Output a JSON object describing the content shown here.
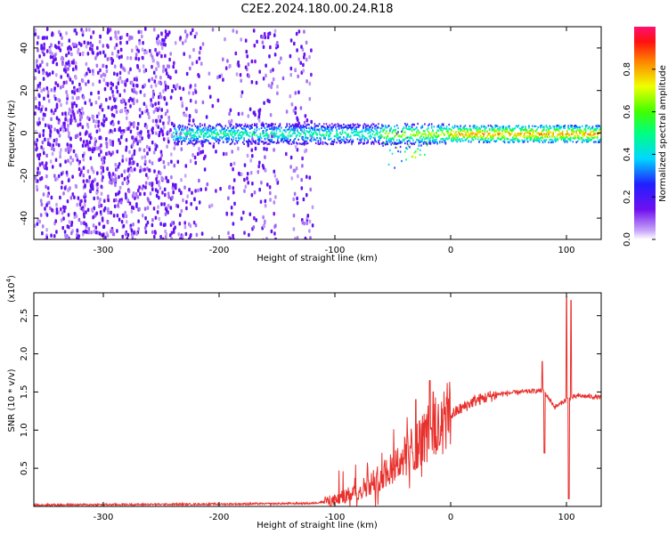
{
  "title": "C2E2.2024.180.00.24.R18",
  "colors": {
    "snr_line": "#e8302c",
    "axis": "#000000",
    "spectrogram_bg": "#ffffff"
  },
  "chart_data": [
    {
      "type": "heatmap",
      "name": "spectrogram",
      "xlabel": "Height of straight line (km)",
      "ylabel": "Frequency (Hz)",
      "xlim": [
        -360,
        130
      ],
      "ylim": [
        -50,
        50
      ],
      "xticks": [
        -300,
        -200,
        -100,
        0,
        100
      ],
      "yticks": [
        -40,
        -20,
        0,
        20,
        40
      ],
      "grid": false,
      "colorbar": {
        "label": "Normalized spectral amplitude",
        "range": [
          0.0,
          1.0
        ],
        "ticks": [
          "0.0",
          "0.2",
          "0.4",
          "0.6",
          "0.8"
        ],
        "colormap": "rainbow"
      },
      "features": {
        "noise_region_x": [
          -360,
          -120
        ],
        "carrier_start_x": -240,
        "carrier_center_hz": 0,
        "carrier_halfwidth_hz": 4,
        "noise_gaps_x": [
          [
            -215,
            -195
          ],
          [
            -150,
            -140
          ]
        ]
      }
    },
    {
      "type": "line",
      "name": "snr",
      "xlabel": "Height of straight line (km)",
      "ylabel": "SNR (10 * v/v)",
      "ylabel_exponent": "(x10",
      "ylabel_exponent_power": "4",
      "ylabel_exponent_close": ")",
      "xlim": [
        -360,
        130
      ],
      "ylim": [
        0,
        2.8
      ],
      "xticks": [
        -300,
        -200,
        -100,
        0,
        100
      ],
      "yticks": [
        "0.5",
        "1.0",
        "1.5",
        "2.0",
        "2.5"
      ],
      "grid": false,
      "series": [
        {
          "color": "#e8302c",
          "control_points": {
            "x": [
              -360,
              -200,
              -120,
              -100,
              -80,
              -60,
              -40,
              -20,
              0,
              20,
              40,
              60,
              80,
              90,
              100,
              110,
              130
            ],
            "y": [
              0.02,
              0.03,
              0.04,
              0.08,
              0.2,
              0.4,
              0.65,
              0.95,
              1.2,
              1.38,
              1.47,
              1.5,
              1.52,
              1.3,
              1.4,
              1.45,
              1.43
            ]
          },
          "spikes": {
            "x": [
              -18,
              -15,
              -30,
              -5,
              79,
              81,
              100,
              102,
              104
            ],
            "y": [
              1.65,
              1.5,
              1.4,
              1.3,
              1.9,
              0.7,
              2.75,
              0.1,
              2.7
            ]
          }
        }
      ]
    }
  ]
}
